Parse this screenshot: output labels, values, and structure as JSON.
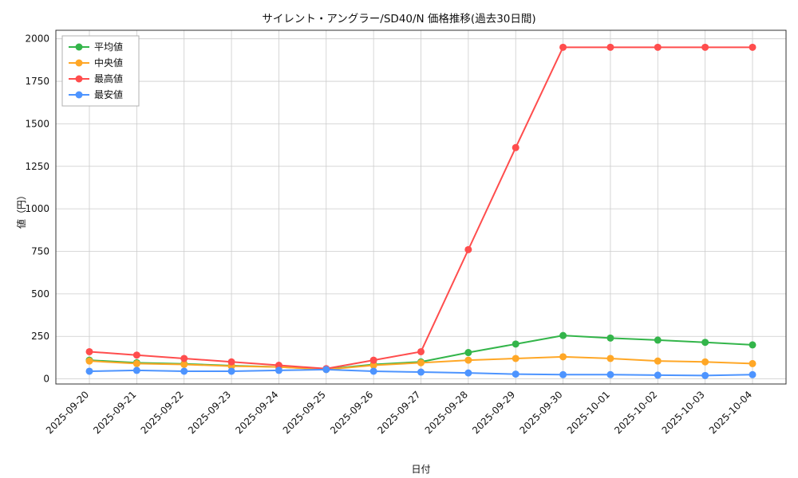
{
  "title": "サイレント・アングラー/SD40/N 価格推移(過去30日間)",
  "chart_data": {
    "type": "line",
    "title": "サイレント・アングラー/SD40/N 価格推移(過去30日間)",
    "xlabel": "日付",
    "ylabel": "値（円）",
    "x": [
      "2025-09-20",
      "2025-09-21",
      "2025-09-22",
      "2025-09-23",
      "2025-09-24",
      "2025-09-25",
      "2025-09-26",
      "2025-09-27",
      "2025-09-28",
      "2025-09-29",
      "2025-09-30",
      "2025-10-01",
      "2025-10-02",
      "2025-10-03",
      "2025-10-04"
    ],
    "yticks": [
      0,
      250,
      500,
      750,
      1000,
      1250,
      1500,
      1750,
      2000
    ],
    "ylim": [
      -30,
      2050
    ],
    "grid": true,
    "legend_position": "upper left",
    "series": [
      {
        "name": "平均値",
        "color": "#33b54a",
        "values": [
          110,
          95,
          88,
          78,
          70,
          57,
          85,
          100,
          155,
          205,
          255,
          240,
          228,
          215,
          200
        ]
      },
      {
        "name": "中央値",
        "color": "#ffa726",
        "values": [
          105,
          90,
          85,
          75,
          70,
          55,
          80,
          95,
          110,
          120,
          130,
          120,
          105,
          100,
          90
        ]
      },
      {
        "name": "最高値",
        "color": "#ff4d4d",
        "values": [
          160,
          140,
          120,
          100,
          80,
          60,
          110,
          160,
          760,
          1360,
          1950,
          1950,
          1950,
          1950,
          1950
        ]
      },
      {
        "name": "最安値",
        "color": "#4d94ff",
        "values": [
          45,
          50,
          45,
          45,
          50,
          55,
          45,
          40,
          35,
          28,
          25,
          25,
          22,
          20,
          25
        ]
      }
    ]
  },
  "colors": {
    "grid": "#cccccc",
    "plot_border": "#333333",
    "background": "#ffffff"
  }
}
